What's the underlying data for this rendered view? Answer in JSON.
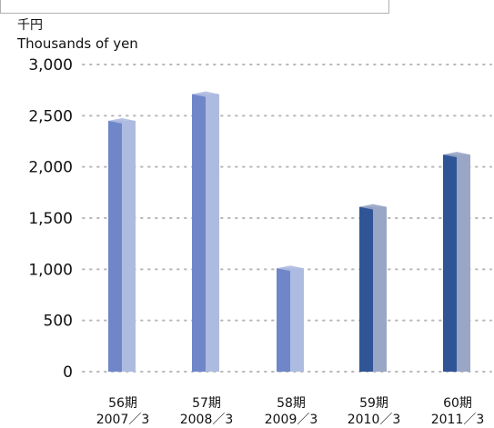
{
  "unit": {
    "jp": "千円",
    "en": "Thousands of yen"
  },
  "chart_data": {
    "type": "bar",
    "title": "",
    "xlabel": "",
    "ylabel": "Thousands of yen",
    "ylim": [
      0,
      3000
    ],
    "yticks": [
      "0",
      "500",
      "1,000",
      "1,500",
      "2,000",
      "2,500",
      "3,000"
    ],
    "grid": true,
    "categories": [
      {
        "period": "56期",
        "date": "2007／3"
      },
      {
        "period": "57期",
        "date": "2008／3"
      },
      {
        "period": "58期",
        "date": "2009／3"
      },
      {
        "period": "59期",
        "date": "2010／3"
      },
      {
        "period": "60期",
        "date": "2011／3"
      }
    ],
    "values": [
      2450,
      2710,
      1010,
      1610,
      2120
    ],
    "colors": {
      "light_front": "#6f86c9",
      "light_side": "#aebbe0",
      "dark_front": "#2f5596",
      "dark_side": "#9aa6c6",
      "grid": "#b9b9b9"
    },
    "bar_styles": [
      "light",
      "light",
      "light",
      "dark",
      "dark"
    ]
  }
}
